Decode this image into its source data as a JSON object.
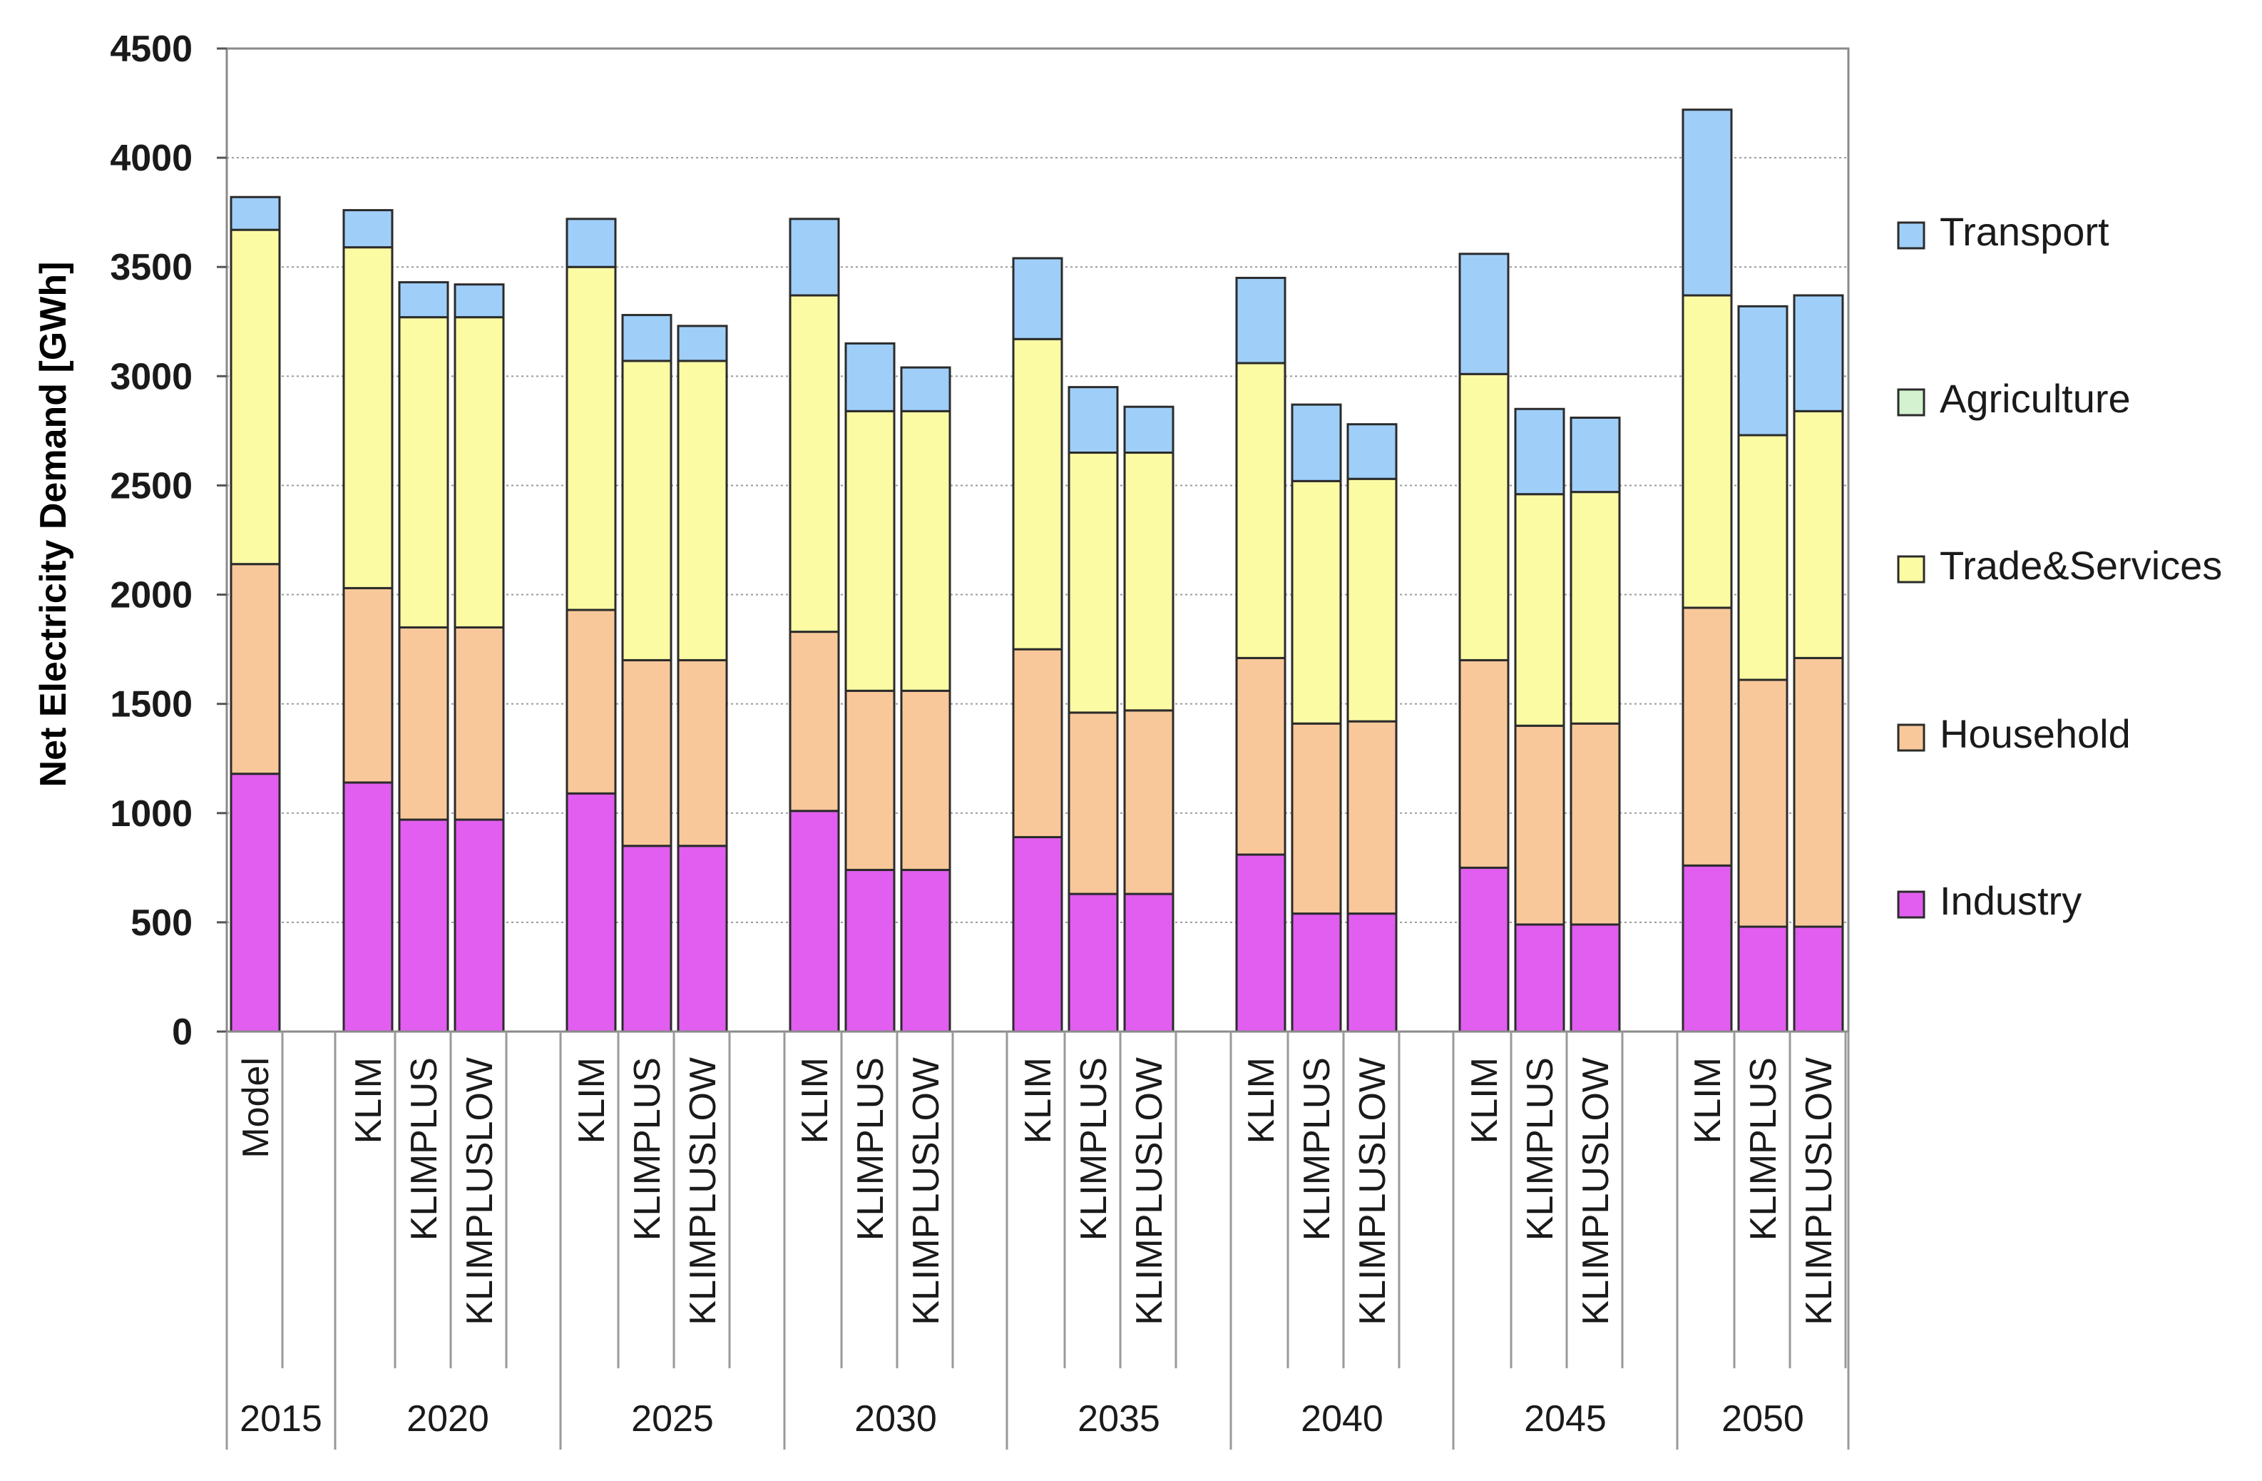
{
  "chart_data": {
    "type": "bar",
    "stacked": true,
    "title": "",
    "xlabel": "",
    "ylabel": "Net Electricity Demand  [GWh]",
    "ylim": [
      0,
      4500
    ],
    "yticks": [
      0,
      500,
      1000,
      1500,
      2000,
      2500,
      3000,
      3500,
      4000,
      4500
    ],
    "grid": true,
    "legend_position": "right",
    "groups": [
      {
        "year": "2015",
        "categories": [
          "Model"
        ]
      },
      {
        "year": "2020",
        "categories": [
          "KLIM",
          "KLIMPLUS",
          "KLIMPLUSLOW"
        ]
      },
      {
        "year": "2025",
        "categories": [
          "KLIM",
          "KLIMPLUS",
          "KLIMPLUSLOW"
        ]
      },
      {
        "year": "2030",
        "categories": [
          "KLIM",
          "KLIMPLUS",
          "KLIMPLUSLOW"
        ]
      },
      {
        "year": "2035",
        "categories": [
          "KLIM",
          "KLIMPLUS",
          "KLIMPLUSLOW"
        ]
      },
      {
        "year": "2040",
        "categories": [
          "KLIM",
          "KLIMPLUS",
          "KLIMPLUSLOW"
        ]
      },
      {
        "year": "2045",
        "categories": [
          "KLIM",
          "KLIMPLUS",
          "KLIMPLUSLOW"
        ]
      },
      {
        "year": "2050",
        "categories": [
          "KLIM",
          "KLIMPLUS",
          "KLIMPLUSLOW"
        ]
      }
    ],
    "series": [
      {
        "name": "Industry",
        "color": "#e15ef0",
        "values": [
          1180,
          1140,
          970,
          970,
          1090,
          850,
          850,
          1010,
          740,
          740,
          890,
          630,
          630,
          810,
          540,
          540,
          750,
          490,
          490,
          760,
          480,
          480
        ]
      },
      {
        "name": "Household",
        "color": "#f9c89a",
        "values": [
          960,
          890,
          880,
          880,
          840,
          850,
          850,
          820,
          820,
          820,
          860,
          830,
          840,
          900,
          870,
          880,
          950,
          910,
          920,
          1180,
          1130,
          1230
        ]
      },
      {
        "name": "Trade&Services",
        "color": "#fbfba4",
        "values": [
          1530,
          1560,
          1420,
          1420,
          1570,
          1370,
          1370,
          1540,
          1280,
          1280,
          1420,
          1190,
          1180,
          1350,
          1110,
          1110,
          1310,
          1060,
          1060,
          1430,
          1120,
          1130
        ]
      },
      {
        "name": "Agriculture",
        "color": "#d4f2d0",
        "values": [
          0,
          0,
          0,
          0,
          0,
          0,
          0,
          0,
          0,
          0,
          0,
          0,
          0,
          0,
          0,
          0,
          0,
          0,
          0,
          0,
          0,
          0
        ]
      },
      {
        "name": "Transport",
        "color": "#9fcff9",
        "values": [
          150,
          170,
          160,
          150,
          220,
          210,
          160,
          350,
          310,
          200,
          370,
          300,
          210,
          390,
          350,
          250,
          550,
          390,
          340,
          850,
          590,
          530
        ]
      }
    ],
    "legend_order": [
      "Transport",
      "Agriculture",
      "Trade&Services",
      "Household",
      "Industry"
    ]
  }
}
